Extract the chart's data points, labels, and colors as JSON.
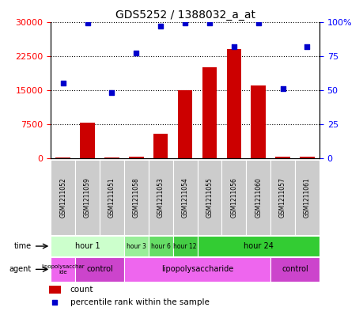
{
  "title": "GDS5252 / 1388032_a_at",
  "samples": [
    "GSM1211052",
    "GSM1211059",
    "GSM1211051",
    "GSM1211058",
    "GSM1211053",
    "GSM1211054",
    "GSM1211055",
    "GSM1211056",
    "GSM1211060",
    "GSM1211057",
    "GSM1211061"
  ],
  "counts": [
    300,
    7800,
    200,
    350,
    5500,
    15000,
    20000,
    24000,
    16000,
    400,
    400
  ],
  "percentiles": [
    55,
    99,
    48,
    77,
    97,
    99,
    99,
    82,
    99,
    51,
    82
  ],
  "ylim_left": [
    0,
    30000
  ],
  "ylim_right": [
    0,
    100
  ],
  "yticks_left": [
    0,
    7500,
    15000,
    22500,
    30000
  ],
  "yticks_right": [
    0,
    25,
    50,
    75,
    100
  ],
  "bar_color": "#cc0000",
  "dot_color": "#0000cc",
  "time_groups": [
    {
      "label": "hour 1",
      "start": 0,
      "end": 3,
      "color": "#ccffcc"
    },
    {
      "label": "hour 3",
      "start": 3,
      "end": 4,
      "color": "#99ee99"
    },
    {
      "label": "hour 6",
      "start": 4,
      "end": 5,
      "color": "#66dd66"
    },
    {
      "label": "hour 12",
      "start": 5,
      "end": 6,
      "color": "#44cc44"
    },
    {
      "label": "hour 24",
      "start": 6,
      "end": 11,
      "color": "#33cc33"
    }
  ],
  "agent_groups": [
    {
      "label": "lipopolysacchar\nide",
      "start": 0,
      "end": 1,
      "color": "#ee66ee"
    },
    {
      "label": "control",
      "start": 1,
      "end": 3,
      "color": "#cc44cc"
    },
    {
      "label": "lipopolysaccharide",
      "start": 3,
      "end": 9,
      "color": "#ee66ee"
    },
    {
      "label": "control",
      "start": 9,
      "end": 11,
      "color": "#cc44cc"
    }
  ],
  "legend_count_label": "count",
  "legend_pct_label": "percentile rank within the sample",
  "time_label": "time",
  "agent_label": "agent",
  "sample_box_color": "#cccccc",
  "background_color": "#ffffff"
}
